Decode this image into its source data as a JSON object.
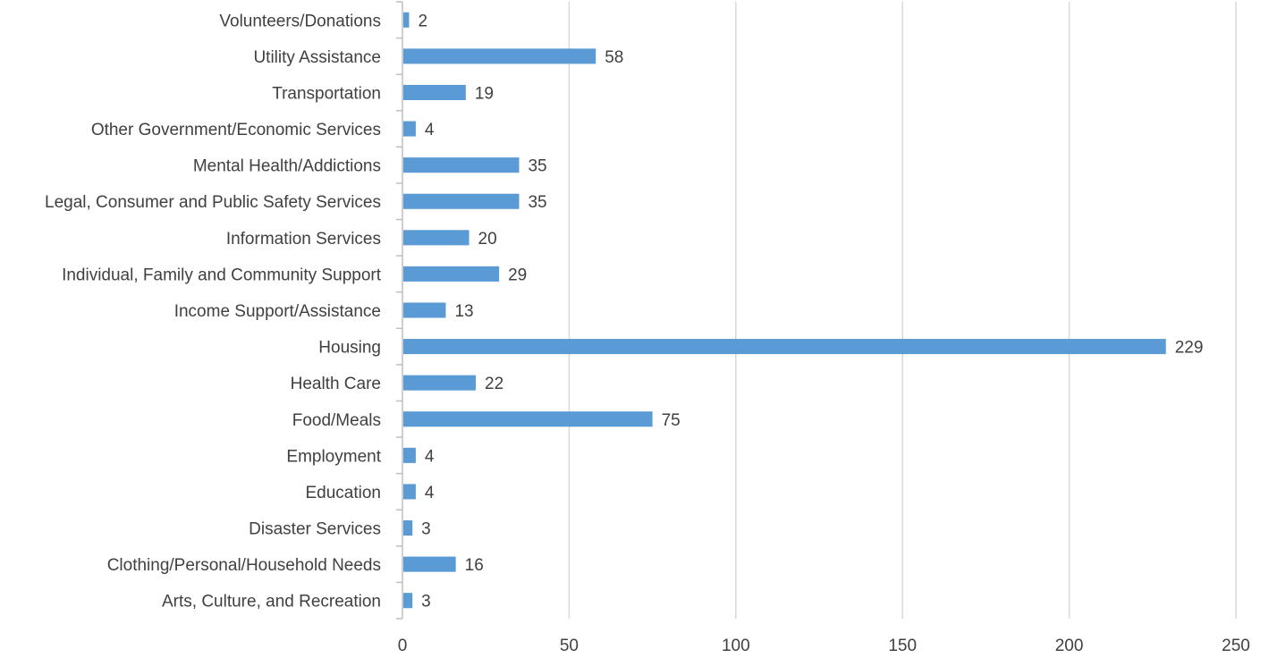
{
  "chart_data": {
    "type": "bar",
    "orientation": "horizontal",
    "categories": [
      "Volunteers/Donations",
      "Utility Assistance",
      "Transportation",
      "Other Government/Economic Services",
      "Mental Health/Addictions",
      "Legal, Consumer and Public Safety Services",
      "Information Services",
      "Individual, Family and Community Support",
      "Income Support/Assistance",
      "Housing",
      "Health Care",
      "Food/Meals",
      "Employment",
      "Education",
      "Disaster Services",
      "Clothing/Personal/Household Needs",
      "Arts, Culture, and Recreation"
    ],
    "values": [
      2,
      58,
      19,
      4,
      35,
      35,
      20,
      29,
      13,
      229,
      22,
      75,
      4,
      4,
      3,
      16,
      3
    ],
    "data_labels": [
      "2",
      "58",
      "19",
      "4",
      "35",
      "35",
      "20",
      "29",
      "13",
      "229",
      "22",
      "75",
      "4",
      "4",
      "3",
      "16",
      "3"
    ],
    "x_ticks": [
      "0",
      "50",
      "100",
      "150",
      "200",
      "250"
    ],
    "xlim": [
      0,
      250
    ],
    "title": "",
    "xlabel": "",
    "ylabel": "",
    "grid": "vertical",
    "legend": "none",
    "colors": {
      "bar": "#5b9bd5",
      "grid": "#d9d9d9",
      "axis": "#bfbfbf",
      "text": "#404040"
    }
  }
}
